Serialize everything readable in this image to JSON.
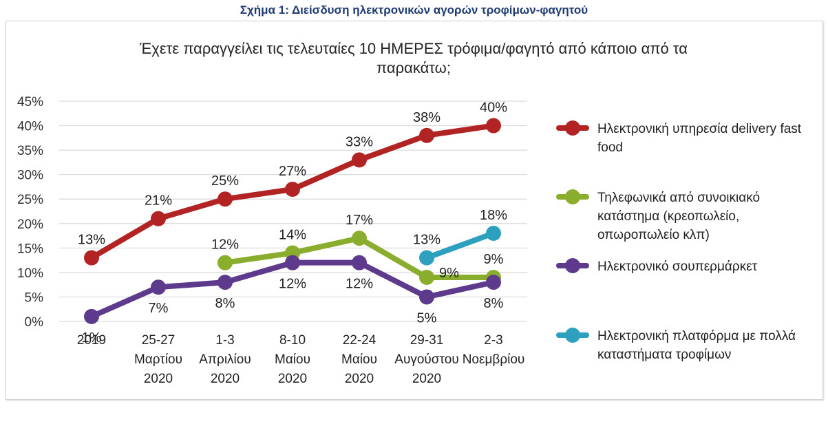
{
  "figure_caption": "Σχήμα 1: Διείσδυση ηλεκτρονικών αγορών τροφίμων-φαγητού",
  "chart_data": {
    "type": "line",
    "title_lines": [
      "Έχετε παραγγείλει τις τελευταίες 10 ΗΜΕΡΕΣ τρόφιμα/φαγητό από κάποιο από τα",
      "παρακάτω;"
    ],
    "categories": [
      [
        "2019"
      ],
      [
        "25-27",
        "Μαρτίου",
        "2020"
      ],
      [
        "1-3",
        "Απριλίου",
        "2020"
      ],
      [
        "8-10",
        "Μαίου",
        "2020"
      ],
      [
        "22-24",
        "Μαίου",
        "2020"
      ],
      [
        "29-31",
        "Αυγούστου",
        "2020"
      ],
      [
        "2-3",
        "Νοεμβρίου"
      ]
    ],
    "y_ticks": [
      "0%",
      "5%",
      "10%",
      "15%",
      "20%",
      "25%",
      "30%",
      "35%",
      "40%",
      "45%"
    ],
    "ylim": [
      0,
      45
    ],
    "grid": true,
    "legend_position": "right",
    "series": [
      {
        "name_lines": [
          "Ηλεκτρονική υπηρεσία delivery fast",
          "food"
        ],
        "color": "#b22424",
        "values": [
          13,
          21,
          25,
          27,
          33,
          38,
          40
        ],
        "labels": [
          "13%",
          "21%",
          "25%",
          "27%",
          "33%",
          "38%",
          "40%"
        ],
        "label_pos": [
          "above",
          "above",
          "above",
          "above",
          "above",
          "above",
          "above"
        ]
      },
      {
        "name_lines": [
          "Τηλεφωνικά από συνοικιακό",
          "κατάστημα (κρεοπωλείο,",
          "οπωροπωλείο κλπ)"
        ],
        "color": "#8aad2d",
        "values": [
          null,
          null,
          12,
          14,
          17,
          9,
          9
        ],
        "labels": [
          null,
          null,
          "12%",
          "14%",
          "17%",
          "9%",
          "9%"
        ],
        "label_pos": [
          null,
          null,
          "above",
          "above",
          "above",
          "right",
          "above"
        ]
      },
      {
        "name_lines": [
          "Ηλεκτρονικό σουπερμάρκετ"
        ],
        "color": "#5e3a8c",
        "values": [
          1,
          7,
          8,
          12,
          12,
          5,
          8
        ],
        "labels": [
          "1%",
          "7%",
          "8%",
          "12%",
          "12%",
          "5%",
          "8%"
        ],
        "label_pos": [
          "below",
          "below",
          "below",
          "below",
          "below",
          "below",
          "below"
        ]
      },
      {
        "name_lines": [
          "Ηλεκτρονική πλατφόρμα με πολλά",
          "καταστήματα τροφίμων"
        ],
        "color": "#2ea0bf",
        "values": [
          null,
          null,
          null,
          null,
          null,
          13,
          18
        ],
        "labels": [
          null,
          null,
          null,
          null,
          null,
          "13%",
          "18%"
        ],
        "label_pos": [
          null,
          null,
          null,
          null,
          null,
          "above",
          "above"
        ]
      }
    ]
  }
}
